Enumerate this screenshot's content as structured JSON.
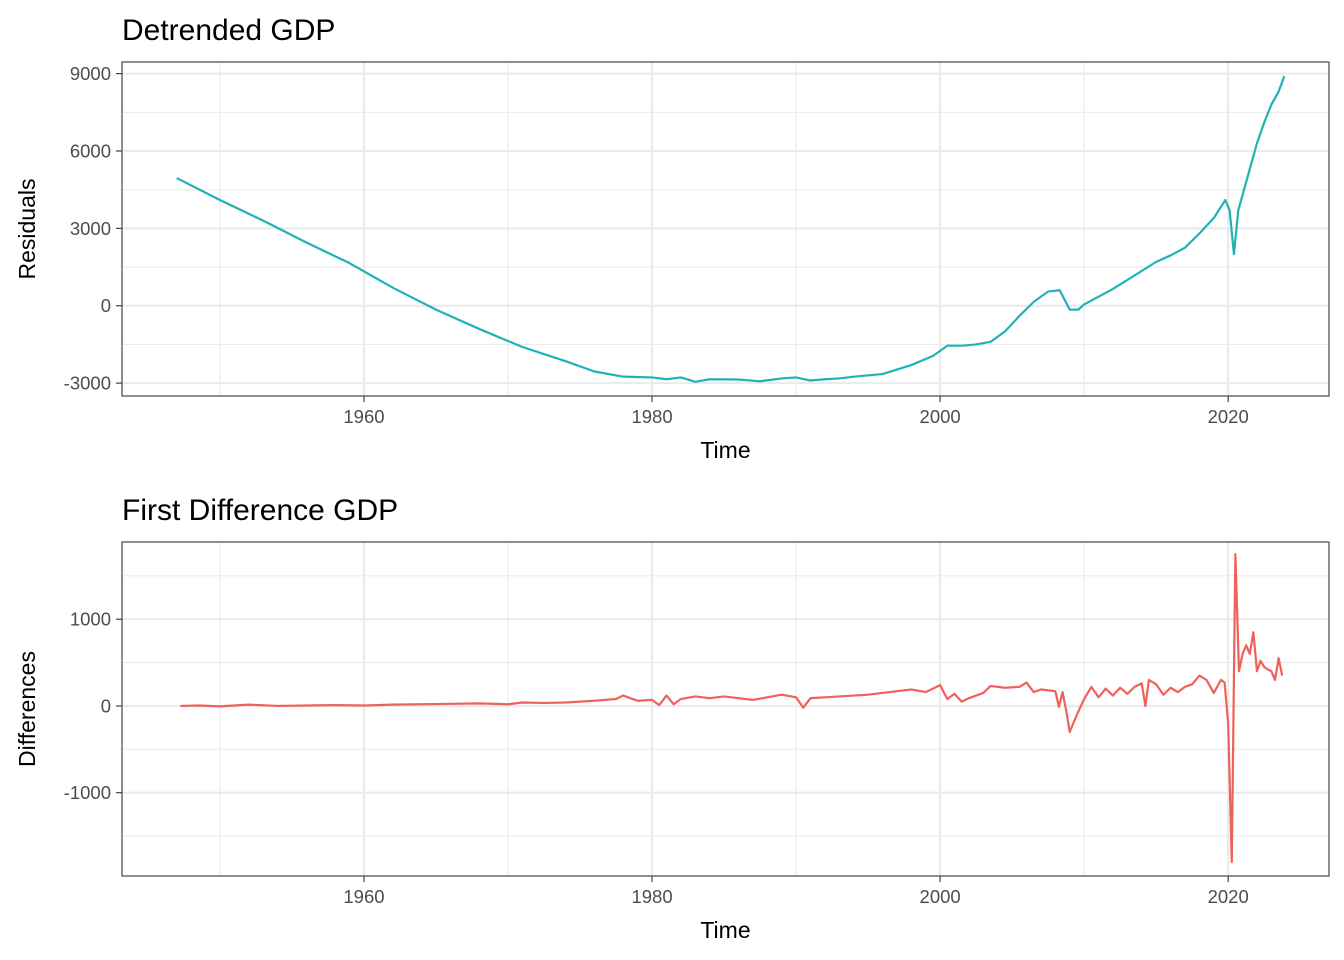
{
  "chart_data": [
    {
      "type": "line",
      "title": "Detrended GDP",
      "xlabel": "Time",
      "ylabel": "Residuals",
      "xlim": [
        1943.2,
        1927.0
      ],
      "ylim": [
        -3500,
        9450
      ],
      "x_ticks": [
        1960,
        1980,
        2000,
        2020
      ],
      "x_tick_labels": [
        "1960",
        "1980",
        "2000",
        "2020"
      ],
      "y_ticks": [
        -3000,
        0,
        3000,
        6000,
        9000
      ],
      "y_tick_labels": [
        "-3000",
        "0",
        "3000",
        "6000",
        "9000"
      ],
      "grid": true,
      "series": [
        {
          "color": "#20b2b5",
          "x": [
            1947.0,
            1950.0,
            1953.0,
            1956.0,
            1959.0,
            1962.0,
            1965.0,
            1968.0,
            1971.0,
            1974.0,
            1976.0,
            1978.0,
            1980.0,
            1981.0,
            1982.0,
            1983.0,
            1984.0,
            1986.0,
            1987.5,
            1989.0,
            1990.0,
            1991.0,
            1992.0,
            1993.0,
            1994.0,
            1996.0,
            1998.0,
            1999.5,
            2000.5,
            2001.5,
            2002.5,
            2003.5,
            2004.5,
            2005.5,
            2006.5,
            2007.5,
            2008.3,
            2009.0,
            2009.6,
            2010.0,
            2011.0,
            2012.0,
            2013.0,
            2014.0,
            2015.0,
            2016.0,
            2017.0,
            2018.0,
            2019.0,
            2019.8,
            2020.1,
            2020.4,
            2020.7,
            2021.0,
            2021.5,
            2022.0,
            2022.5,
            2023.0,
            2023.5,
            2023.9
          ],
          "y": [
            4950,
            4100,
            3300,
            2450,
            1650,
            700,
            -150,
            -900,
            -1600,
            -2150,
            -2550,
            -2750,
            -2780,
            -2850,
            -2780,
            -2950,
            -2850,
            -2860,
            -2930,
            -2820,
            -2780,
            -2900,
            -2850,
            -2820,
            -2750,
            -2650,
            -2300,
            -1950,
            -1550,
            -1550,
            -1500,
            -1400,
            -1000,
            -400,
            150,
            550,
            600,
            -150,
            -150,
            50,
            350,
            650,
            1000,
            1350,
            1700,
            1950,
            2250,
            2800,
            3400,
            4100,
            3700,
            2000,
            3700,
            4300,
            5300,
            6300,
            7100,
            7800,
            8300,
            8900
          ]
        }
      ]
    },
    {
      "type": "line",
      "title": "First Difference GDP",
      "xlabel": "Time",
      "ylabel": "Differences",
      "xlim": [
        1943.2,
        2027.0
      ],
      "ylim": [
        -1960,
        1890
      ],
      "x_ticks": [
        1960,
        1980,
        2000,
        2020
      ],
      "x_tick_labels": [
        "1960",
        "1980",
        "2000",
        "2020"
      ],
      "y_ticks": [
        -1000,
        0,
        1000
      ],
      "y_tick_labels": [
        "-1000",
        "0",
        "1000"
      ],
      "grid": true,
      "series": [
        {
          "color": "#f0615c",
          "x": [
            1947.25,
            1948.5,
            1950.0,
            1952.0,
            1954.0,
            1956.0,
            1958.0,
            1960.0,
            1962.0,
            1964.0,
            1966.0,
            1968.0,
            1970.0,
            1971.0,
            1972.5,
            1974.0,
            1976.0,
            1977.5,
            1978.0,
            1979.0,
            1980.0,
            1980.5,
            1981.0,
            1981.5,
            1982.0,
            1983.0,
            1984.0,
            1985.0,
            1986.0,
            1987.0,
            1988.0,
            1989.0,
            1990.0,
            1990.5,
            1991.0,
            1992.0,
            1993.0,
            1994.0,
            1995.0,
            1996.0,
            1997.0,
            1998.0,
            1999.0,
            2000.0,
            2000.5,
            2001.0,
            2001.5,
            2002.0,
            2003.0,
            2003.5,
            2004.5,
            2005.5,
            2006.0,
            2006.5,
            2007.0,
            2008.0,
            2008.25,
            2008.5,
            2008.75,
            2009.0,
            2009.5,
            2010.0,
            2010.5,
            2011.0,
            2011.5,
            2012.0,
            2012.5,
            2013.0,
            2013.5,
            2014.0,
            2014.25,
            2014.5,
            2015.0,
            2015.5,
            2016.0,
            2016.5,
            2017.0,
            2017.5,
            2018.0,
            2018.5,
            2019.0,
            2019.5,
            2019.75,
            2020.0,
            2020.25,
            2020.5,
            2020.75,
            2021.0,
            2021.25,
            2021.5,
            2021.75,
            2022.0,
            2022.25,
            2022.5,
            2022.75,
            2023.0,
            2023.25,
            2023.5,
            2023.75
          ],
          "y": [
            0,
            5,
            -5,
            15,
            0,
            5,
            10,
            5,
            15,
            20,
            25,
            30,
            20,
            40,
            35,
            40,
            60,
            80,
            120,
            60,
            70,
            10,
            120,
            20,
            80,
            110,
            90,
            110,
            90,
            70,
            100,
            130,
            100,
            -20,
            90,
            100,
            110,
            120,
            130,
            150,
            170,
            190,
            160,
            240,
            80,
            140,
            50,
            90,
            150,
            230,
            210,
            220,
            270,
            160,
            190,
            170,
            -10,
            160,
            -50,
            -300,
            -100,
            80,
            220,
            100,
            200,
            120,
            210,
            140,
            220,
            260,
            0,
            300,
            250,
            130,
            210,
            160,
            220,
            250,
            350,
            300,
            150,
            300,
            270,
            -200,
            -1800,
            1750,
            400,
            600,
            700,
            600,
            850,
            400,
            520,
            450,
            420,
            400,
            300,
            550,
            350
          ]
        }
      ]
    }
  ]
}
